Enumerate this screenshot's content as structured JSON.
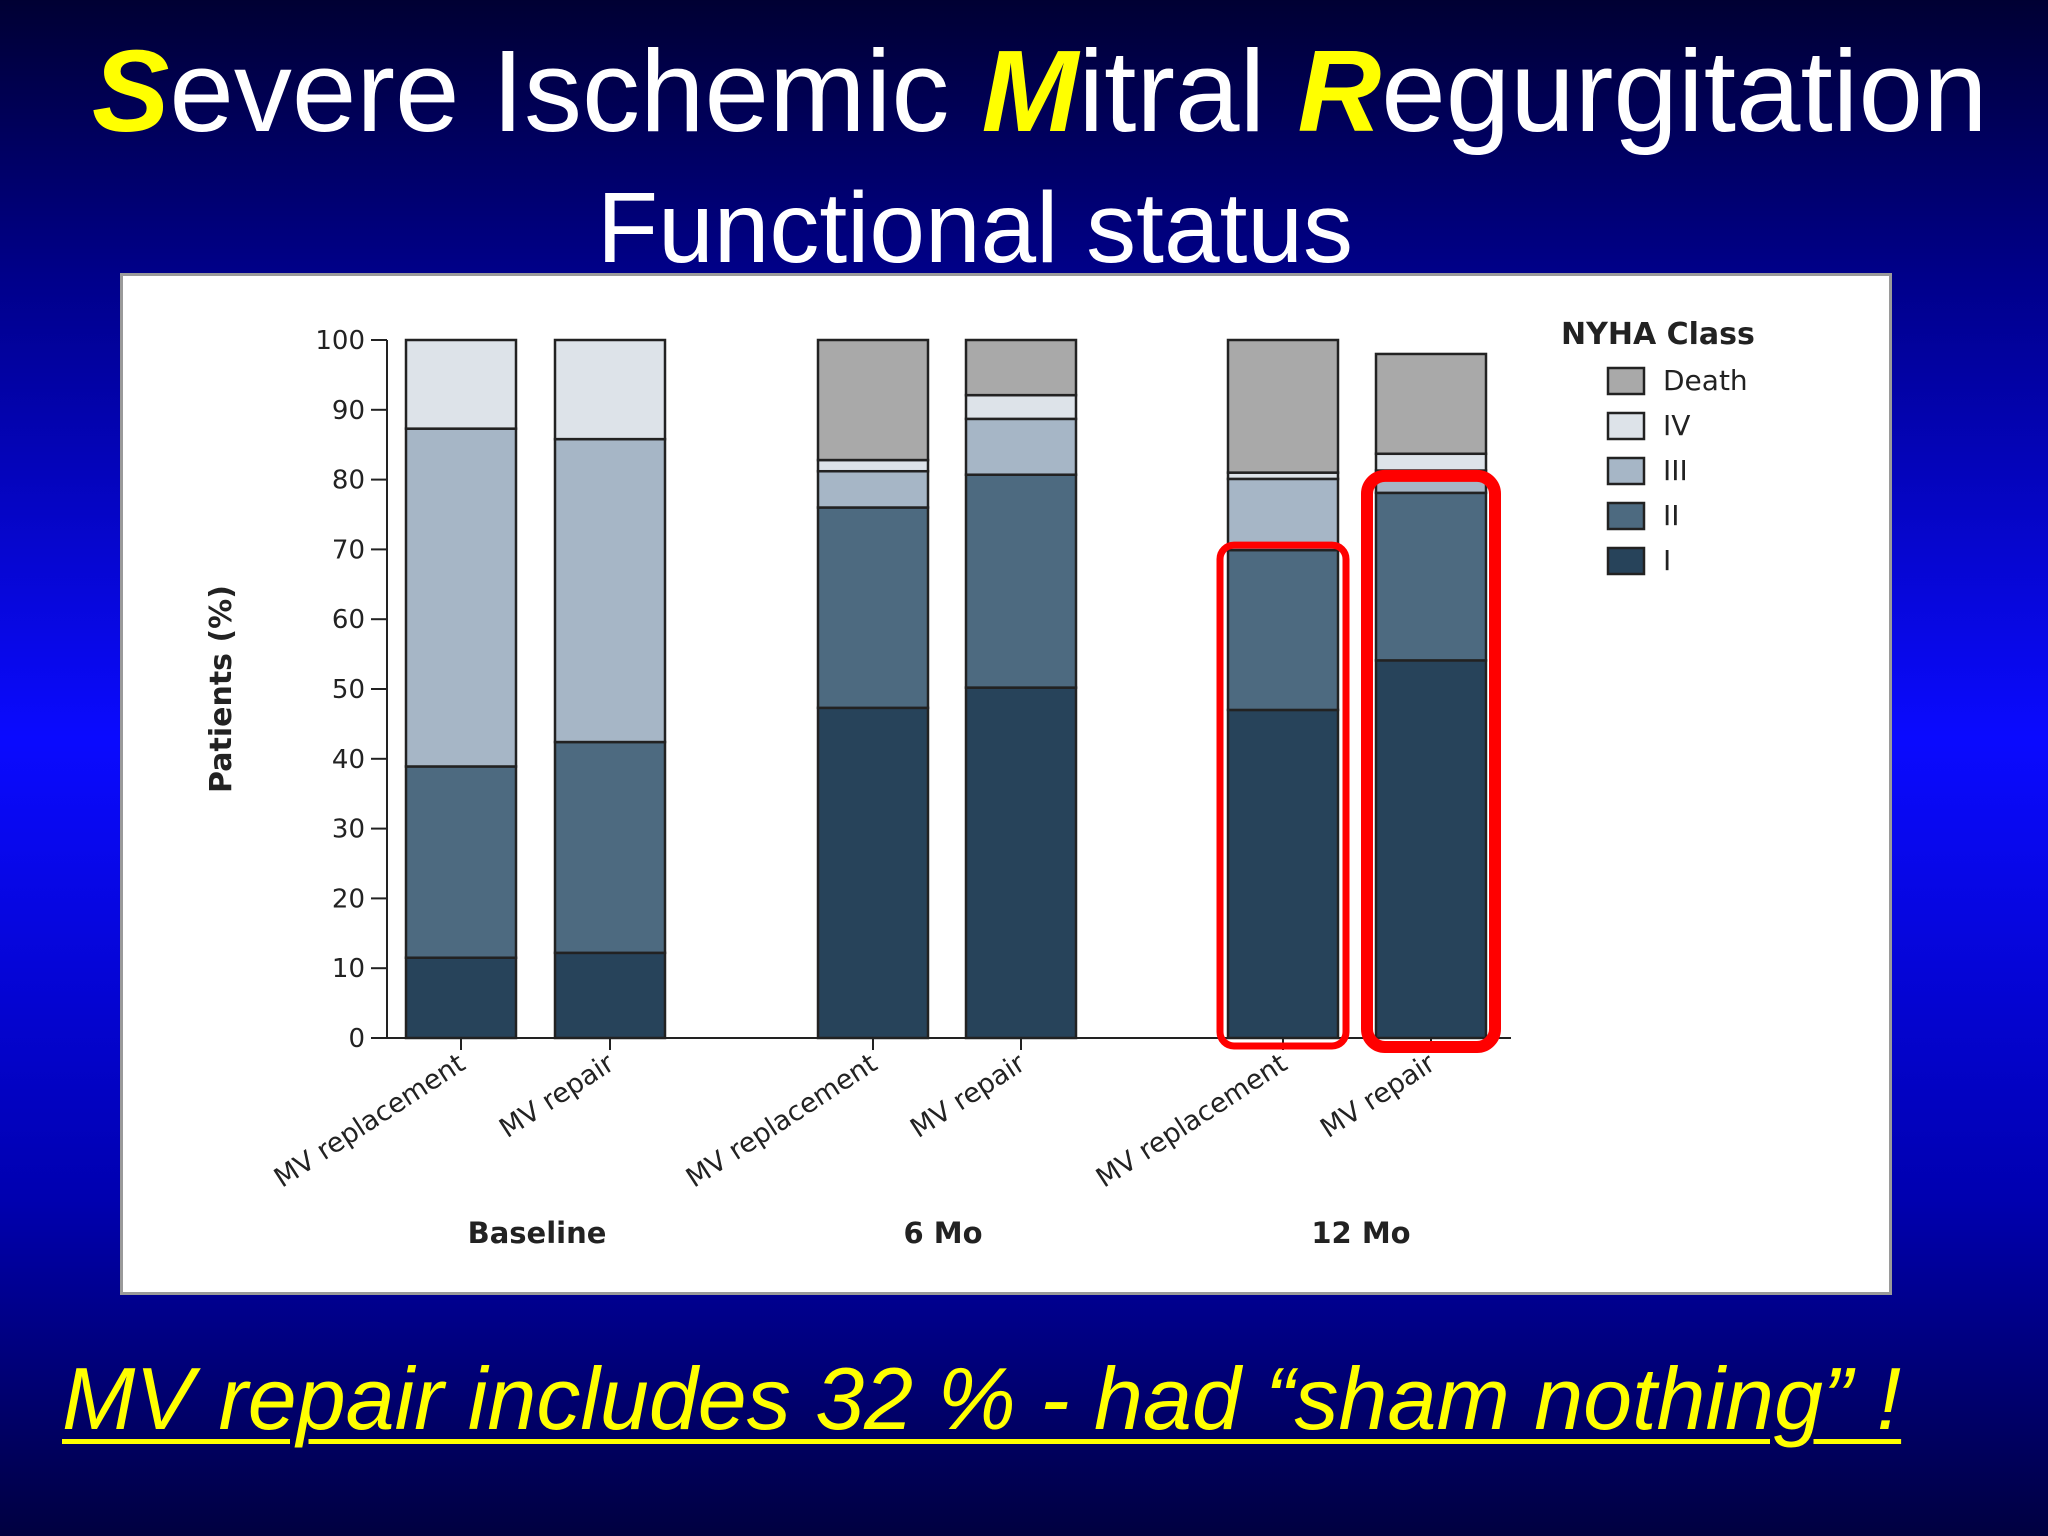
{
  "slide": {
    "title": {
      "s_letter": "S",
      "s_rest": "evere Ischemic ",
      "m_letter": "M",
      "m_rest": "itral ",
      "r_letter": "R",
      "r_rest": "egurgitation"
    },
    "subtitle": "Functional status",
    "footer": "MV repair includes  32 % - had “sham nothing” !"
  },
  "chart_data": {
    "type": "bar",
    "stacked": true,
    "ylabel": "Patients (%)",
    "ylim": [
      0,
      100
    ],
    "yticks": [
      0,
      10,
      20,
      30,
      40,
      50,
      60,
      70,
      80,
      90,
      100
    ],
    "legend": {
      "title": "NYHA Class",
      "placement": "top-right",
      "entries": [
        "Death",
        "IV",
        "III",
        "II",
        "I"
      ]
    },
    "groups": [
      {
        "name": "Baseline",
        "bars": [
          "MV replacement",
          "MV repair"
        ]
      },
      {
        "name": "6 Mo",
        "bars": [
          "MV replacement",
          "MV repair"
        ]
      },
      {
        "name": "12 Mo",
        "bars": [
          "MV replacement",
          "MV repair"
        ]
      }
    ],
    "categories": [
      "MV replacement",
      "MV repair",
      "MV replacement",
      "MV repair",
      "MV replacement",
      "MV repair"
    ],
    "series": [
      {
        "name": "I",
        "color": "#27435a",
        "values": [
          11.5,
          12.2,
          47.3,
          50.2,
          47.0,
          54.1
        ]
      },
      {
        "name": "II",
        "color": "#4d6a80",
        "values": [
          27.4,
          30.2,
          28.7,
          30.5,
          22.9,
          24.0
        ]
      },
      {
        "name": "III",
        "color": "#a6b6c6",
        "values": [
          48.4,
          43.4,
          5.2,
          8.0,
          10.2,
          3.2
        ]
      },
      {
        "name": "IV",
        "color": "#dde3e9",
        "values": [
          12.7,
          14.2,
          1.6,
          3.4,
          0.9,
          2.4
        ]
      },
      {
        "name": "Death",
        "color": "#a9a9a9",
        "values": [
          0,
          0,
          17.2,
          7.9,
          19.0,
          14.3
        ]
      }
    ],
    "highlighted_bars": [
      4,
      5
    ],
    "highlight_color": "#ff0000"
  }
}
